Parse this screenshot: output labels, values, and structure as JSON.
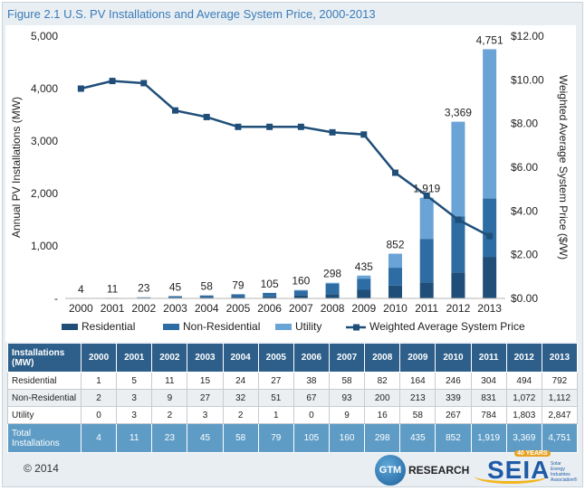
{
  "title": "Figure 2.1  U.S. PV Installations and Average System Price, 2000-2013",
  "chart_data": {
    "type": "bar",
    "stacked": true,
    "categories": [
      "2000",
      "2001",
      "2002",
      "2003",
      "2004",
      "2005",
      "2006",
      "2007",
      "2008",
      "2009",
      "2010",
      "2011",
      "2012",
      "2013"
    ],
    "series": [
      {
        "name": "Residential",
        "color": "#1f4e79",
        "values": [
          1,
          5,
          11,
          15,
          24,
          27,
          38,
          58,
          82,
          164,
          246,
          304,
          494,
          792
        ]
      },
      {
        "name": "Non-Residential",
        "color": "#2e6ca4",
        "values": [
          2,
          3,
          9,
          27,
          32,
          51,
          67,
          93,
          200,
          213,
          339,
          831,
          1072,
          1112
        ]
      },
      {
        "name": "Utility",
        "color": "#6aa3d5",
        "values": [
          0,
          3,
          2,
          3,
          2,
          1,
          0,
          9,
          16,
          58,
          267,
          784,
          1803,
          2847
        ]
      }
    ],
    "totals": [
      4,
      11,
      23,
      45,
      58,
      79,
      105,
      160,
      298,
      435,
      852,
      1919,
      3369,
      4751
    ],
    "total_labels": [
      "4",
      "11",
      "23",
      "45",
      "58",
      "79",
      "105",
      "160",
      "298",
      "435",
      "852",
      "1,919",
      "3,369",
      "4,751"
    ],
    "line_series": {
      "name": "Weighted Average System Price",
      "color": "#1f4e79",
      "values": [
        9.6,
        9.95,
        9.85,
        8.6,
        8.3,
        7.85,
        7.85,
        7.85,
        7.6,
        7.5,
        5.75,
        4.7,
        3.6,
        2.85
      ]
    },
    "ylabel": "Annual PV Installations (MW)",
    "y2label": "Weighted Average System Price ($/W)",
    "ylim": [
      0,
      5000
    ],
    "y2lim": [
      0,
      12
    ],
    "yticks": [
      "-",
      "1,000",
      "2,000",
      "3,000",
      "4,000",
      "5,000"
    ],
    "y2ticks": [
      "$0.00",
      "$2.00",
      "$4.00",
      "$6.00",
      "$8.00",
      "$10.00",
      "$12.00"
    ],
    "legend": "bottom"
  },
  "table": {
    "header_label": "Installations (MW)",
    "years": [
      "2000",
      "2001",
      "2002",
      "2003",
      "2004",
      "2005",
      "2006",
      "2007",
      "2008",
      "2009",
      "2010",
      "2011",
      "2012",
      "2013"
    ],
    "rows": [
      {
        "label": "Residential",
        "values": [
          "1",
          "5",
          "11",
          "15",
          "24",
          "27",
          "38",
          "58",
          "82",
          "164",
          "246",
          "304",
          "494",
          "792"
        ]
      },
      {
        "label": "Non-Residential",
        "values": [
          "2",
          "3",
          "9",
          "27",
          "32",
          "51",
          "67",
          "93",
          "200",
          "213",
          "339",
          "831",
          "1,072",
          "1,112"
        ]
      },
      {
        "label": "Utility",
        "values": [
          "0",
          "3",
          "2",
          "3",
          "2",
          "1",
          "0",
          "9",
          "16",
          "58",
          "267",
          "784",
          "1,803",
          "2,847"
        ]
      }
    ],
    "total": {
      "label": "Total Installations",
      "values": [
        "4",
        "11",
        "23",
        "45",
        "58",
        "79",
        "105",
        "160",
        "298",
        "435",
        "852",
        "1,919",
        "3,369",
        "4,751"
      ]
    }
  },
  "footer": {
    "copyright": "© 2014",
    "gtm_mark": "GTM",
    "gtm_word": "RESEARCH",
    "seia_word": "SEIA",
    "seia_badge": "40 YEARS",
    "seia_sub": "Solar Energy Industries Association®"
  }
}
